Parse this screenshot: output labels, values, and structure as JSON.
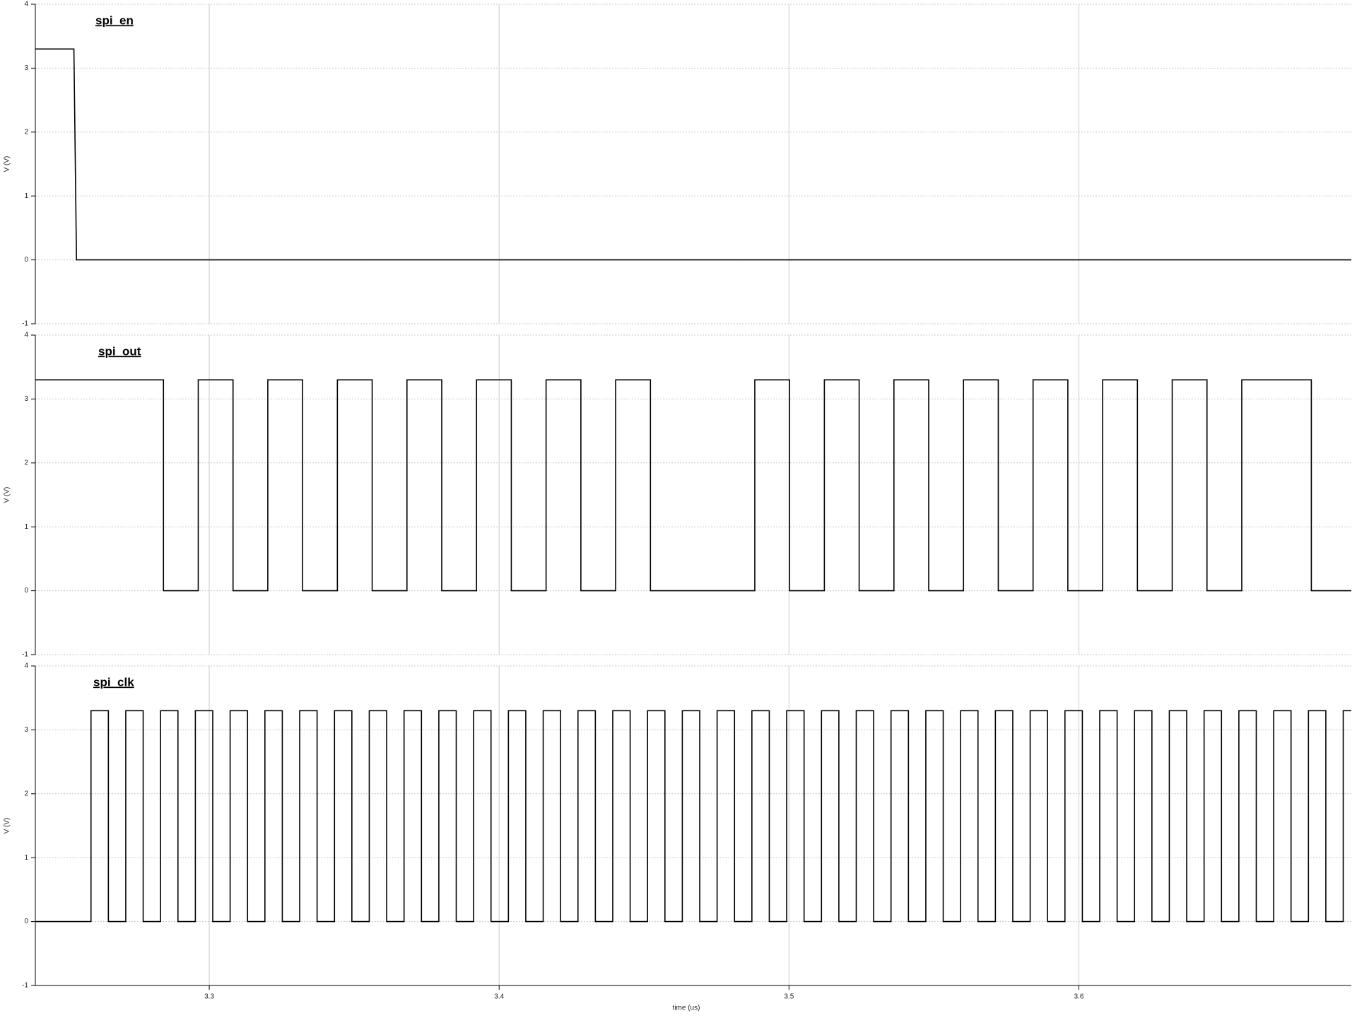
{
  "chart_data": [
    {
      "type": "line",
      "title": "spi_en",
      "ylabel": "V (V)",
      "color": "#000000",
      "grid": true,
      "xlim": [
        3.24,
        3.694
      ],
      "xticks": [
        3.3,
        3.4,
        3.5,
        3.6
      ],
      "ylim": [
        -1,
        4
      ],
      "yticks": [
        -1,
        0,
        1,
        2,
        3,
        4
      ],
      "x": [
        3.24,
        3.2533,
        3.2542,
        3.694
      ],
      "values": [
        3.3,
        3.3,
        0,
        0
      ]
    },
    {
      "type": "line",
      "title": "spi_out",
      "ylabel": "V (V)",
      "color": "#000000",
      "grid": true,
      "xlim": [
        3.24,
        3.694
      ],
      "xticks": [
        3.3,
        3.4,
        3.5,
        3.6
      ],
      "ylim": [
        -1,
        4
      ],
      "yticks": [
        -1,
        0,
        1,
        2,
        3,
        4
      ],
      "x": [
        3.24,
        3.2842,
        3.2842,
        3.2962,
        3.2962,
        3.3082,
        3.3082,
        3.3202,
        3.3202,
        3.3322,
        3.3322,
        3.3442,
        3.3442,
        3.3562,
        3.3562,
        3.3682,
        3.3682,
        3.3802,
        3.3802,
        3.3922,
        3.3922,
        3.4042,
        3.4042,
        3.4162,
        3.4162,
        3.4282,
        3.4282,
        3.4402,
        3.4402,
        3.4522,
        3.4522,
        3.4882,
        3.4882,
        3.5002,
        3.5002,
        3.5122,
        3.5122,
        3.5242,
        3.5242,
        3.5362,
        3.5362,
        3.5482,
        3.5482,
        3.5602,
        3.5602,
        3.5722,
        3.5722,
        3.5842,
        3.5842,
        3.5962,
        3.5962,
        3.6082,
        3.6082,
        3.6202,
        3.6202,
        3.6322,
        3.6322,
        3.6442,
        3.6442,
        3.6562,
        3.6562,
        3.6802,
        3.6802,
        3.694
      ],
      "values": [
        3.3,
        3.3,
        0,
        0,
        3.3,
        3.3,
        0,
        0,
        3.3,
        3.3,
        0,
        0,
        3.3,
        3.3,
        0,
        0,
        3.3,
        3.3,
        0,
        0,
        3.3,
        3.3,
        0,
        0,
        3.3,
        3.3,
        0,
        0,
        3.3,
        3.3,
        0,
        0,
        3.3,
        3.3,
        0,
        0,
        3.3,
        3.3,
        0,
        0,
        3.3,
        3.3,
        0,
        0,
        3.3,
        3.3,
        0,
        0,
        3.3,
        3.3,
        0,
        0,
        3.3,
        3.3,
        0,
        0,
        3.3,
        3.3,
        0,
        0,
        3.3,
        3.3,
        0,
        0
      ]
    },
    {
      "type": "line",
      "title": "spi_clk",
      "ylabel": "V (V)",
      "xlabel": "time (us)",
      "color": "#000000",
      "grid": true,
      "xlim": [
        3.24,
        3.694
      ],
      "xticks": [
        3.3,
        3.4,
        3.5,
        3.6
      ],
      "ylim": [
        -1,
        4
      ],
      "yticks": [
        -1,
        0,
        1,
        2,
        3,
        4
      ],
      "x": [
        3.24,
        3.2592,
        3.2592,
        3.2652,
        3.2652,
        3.2712,
        3.2712,
        3.2772,
        3.2772,
        3.2832,
        3.2832,
        3.2892,
        3.2892,
        3.2952,
        3.2952,
        3.3012,
        3.3012,
        3.3072,
        3.3072,
        3.3132,
        3.3132,
        3.3192,
        3.3192,
        3.3252,
        3.3252,
        3.3312,
        3.3312,
        3.3372,
        3.3372,
        3.3432,
        3.3432,
        3.3492,
        3.3492,
        3.3552,
        3.3552,
        3.3612,
        3.3612,
        3.3672,
        3.3672,
        3.3732,
        3.3732,
        3.3792,
        3.3792,
        3.3852,
        3.3852,
        3.3912,
        3.3912,
        3.3972,
        3.3972,
        3.4032,
        3.4032,
        3.4092,
        3.4092,
        3.4152,
        3.4152,
        3.4212,
        3.4212,
        3.4272,
        3.4272,
        3.4332,
        3.4332,
        3.4392,
        3.4392,
        3.4452,
        3.4452,
        3.4512,
        3.4512,
        3.4572,
        3.4572,
        3.4632,
        3.4632,
        3.4692,
        3.4692,
        3.4752,
        3.4752,
        3.4812,
        3.4812,
        3.4872,
        3.4872,
        3.4932,
        3.4932,
        3.4992,
        3.4992,
        3.5052,
        3.5052,
        3.5112,
        3.5112,
        3.5172,
        3.5172,
        3.5232,
        3.5232,
        3.5292,
        3.5292,
        3.5352,
        3.5352,
        3.5412,
        3.5412,
        3.5472,
        3.5472,
        3.5532,
        3.5532,
        3.5592,
        3.5592,
        3.5652,
        3.5652,
        3.5712,
        3.5712,
        3.5772,
        3.5772,
        3.5832,
        3.5832,
        3.5892,
        3.5892,
        3.5952,
        3.5952,
        3.6012,
        3.6012,
        3.6072,
        3.6072,
        3.6132,
        3.6132,
        3.6192,
        3.6192,
        3.6252,
        3.6252,
        3.6312,
        3.6312,
        3.6372,
        3.6372,
        3.6432,
        3.6432,
        3.6492,
        3.6492,
        3.6552,
        3.6552,
        3.6612,
        3.6612,
        3.6672,
        3.6672,
        3.6732,
        3.6732,
        3.6792,
        3.6792,
        3.6852,
        3.6852,
        3.6912,
        3.6912,
        3.694
      ],
      "values": [
        0,
        0,
        3.3,
        3.3,
        0,
        0,
        3.3,
        3.3,
        0,
        0,
        3.3,
        3.3,
        0,
        0,
        3.3,
        3.3,
        0,
        0,
        3.3,
        3.3,
        0,
        0,
        3.3,
        3.3,
        0,
        0,
        3.3,
        3.3,
        0,
        0,
        3.3,
        3.3,
        0,
        0,
        3.3,
        3.3,
        0,
        0,
        3.3,
        3.3,
        0,
        0,
        3.3,
        3.3,
        0,
        0,
        3.3,
        3.3,
        0,
        0,
        3.3,
        3.3,
        0,
        0,
        3.3,
        3.3,
        0,
        0,
        3.3,
        3.3,
        0,
        0,
        3.3,
        3.3,
        0,
        0,
        3.3,
        3.3,
        0,
        0,
        3.3,
        3.3,
        0,
        0,
        3.3,
        3.3,
        0,
        0,
        3.3,
        3.3,
        0,
        0,
        3.3,
        3.3,
        0,
        0,
        3.3,
        3.3,
        0,
        0,
        3.3,
        3.3,
        0,
        0,
        3.3,
        3.3,
        0,
        0,
        3.3,
        3.3,
        0,
        0,
        3.3,
        3.3,
        0,
        0,
        3.3,
        3.3,
        0,
        0,
        3.3,
        3.3,
        0,
        0,
        3.3,
        3.3,
        0,
        0,
        3.3,
        3.3,
        0,
        0,
        3.3,
        3.3,
        0,
        0,
        3.3,
        3.3,
        0,
        0,
        3.3,
        3.3,
        0,
        0,
        3.3,
        3.3,
        0,
        0,
        3.3,
        3.3,
        0,
        0,
        3.3,
        3.3,
        0,
        0,
        3.3,
        3.3
      ]
    }
  ]
}
